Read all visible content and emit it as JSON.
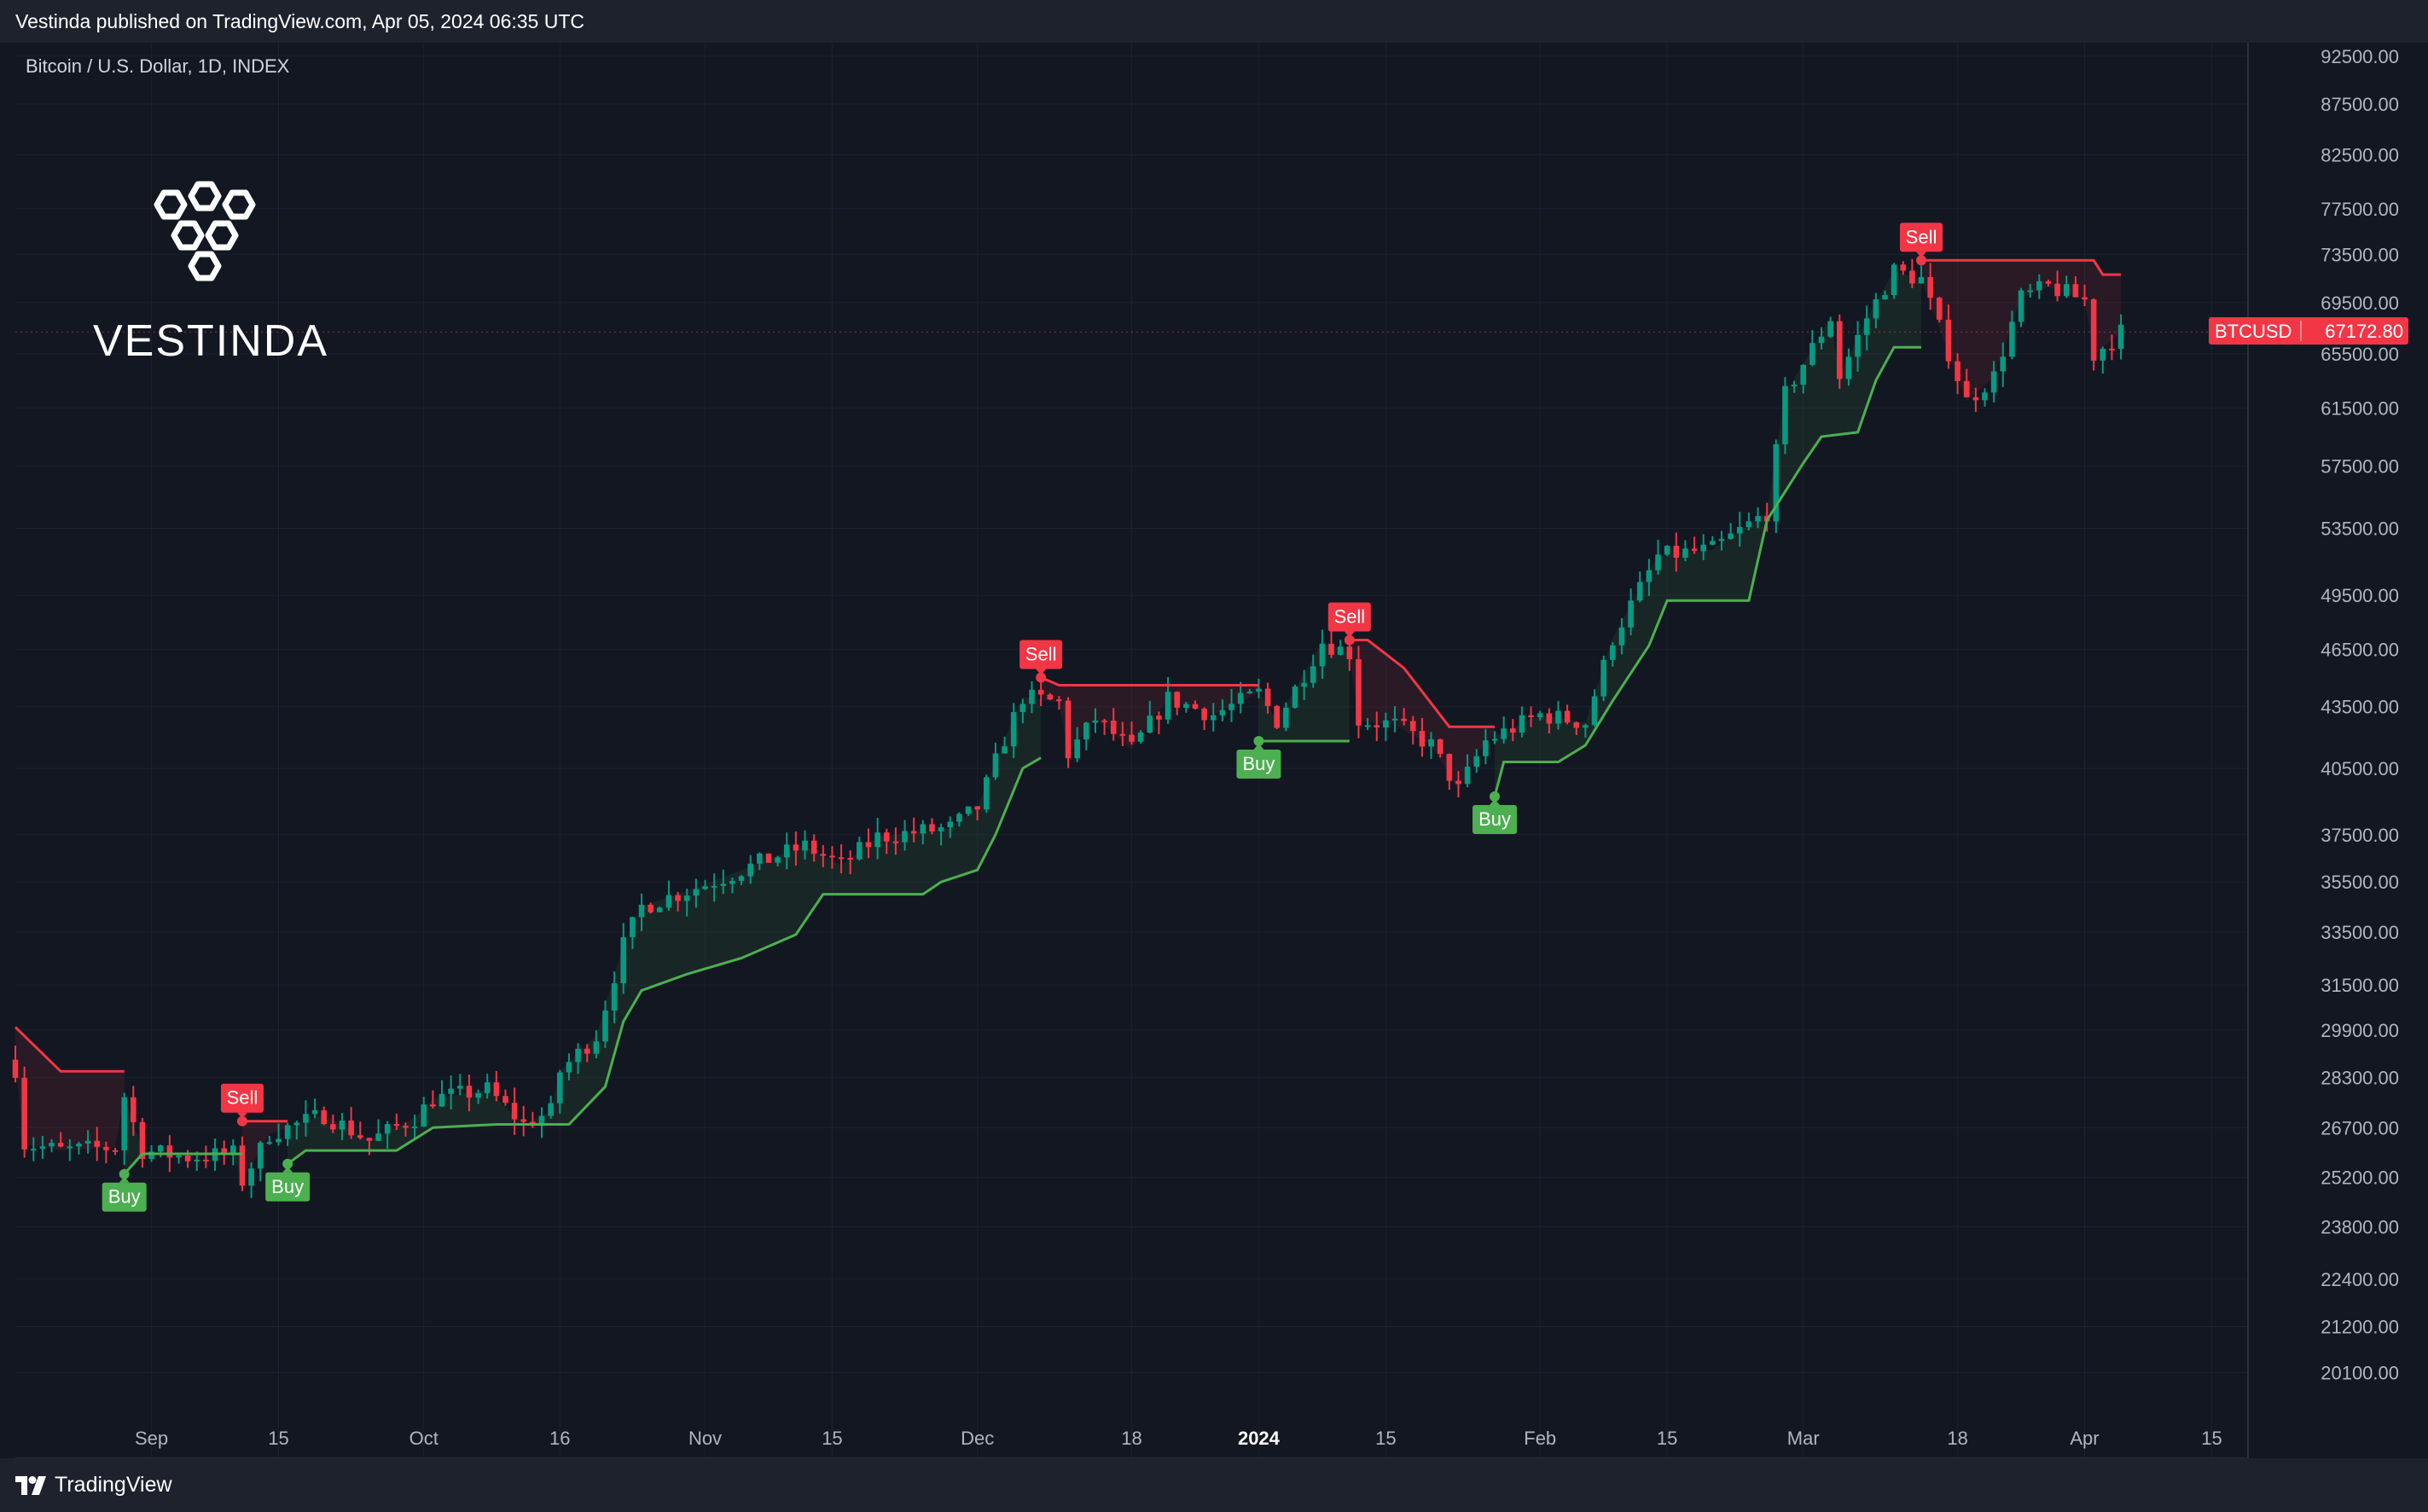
{
  "header": {
    "published": "Vestinda published on TradingView.com, Apr 05, 2024 06:35 UTC"
  },
  "chart_meta": {
    "symbol_line": "Bitcoin / U.S. Dollar, 1D, INDEX"
  },
  "brand": {
    "name": "VESTINDA",
    "logo_icon": "vestinda-hexagons-icon"
  },
  "footer": {
    "brand": "TradingView",
    "logo_icon": "tradingview-17-icon"
  },
  "price_tag": {
    "symbol": "BTCUSD",
    "price": "67172.80",
    "value": 67172.8,
    "color": "#f23645"
  },
  "colors": {
    "up": "#089981",
    "down": "#f23645",
    "up_line": "#4caf50",
    "down_line": "#f23645",
    "background": "#131722"
  },
  "chart_data": {
    "type": "candlestick",
    "title": "Bitcoin / U.S. Dollar, 1D, INDEX",
    "y_scale": "log",
    "ylim": [
      19500,
      93500
    ],
    "y_ticks": [
      "92500.00",
      "87500.00",
      "82500.00",
      "77500.00",
      "73500.00",
      "69500.00",
      "65500.00",
      "61500.00",
      "57500.00",
      "53500.00",
      "49500.00",
      "46500.00",
      "43500.00",
      "40500.00",
      "37500.00",
      "35500.00",
      "33500.00",
      "31500.00",
      "29900.00",
      "28300.00",
      "26700.00",
      "25200.00",
      "23800.00",
      "22400.00",
      "21200.00",
      "20100.00"
    ],
    "x_range": [
      "2023-08-17",
      "2024-04-19"
    ],
    "x_ticks": [
      {
        "date": "2023-09-01",
        "label": "Sep"
      },
      {
        "date": "2023-09-15",
        "label": "15"
      },
      {
        "date": "2023-10-01",
        "label": "Oct"
      },
      {
        "date": "2023-10-16",
        "label": "16"
      },
      {
        "date": "2023-11-01",
        "label": "Nov"
      },
      {
        "date": "2023-11-15",
        "label": "15"
      },
      {
        "date": "2023-12-01",
        "label": "Dec"
      },
      {
        "date": "2023-12-18",
        "label": "18"
      },
      {
        "date": "2024-01-01",
        "label": "2024",
        "bold": true
      },
      {
        "date": "2024-01-15",
        "label": "15"
      },
      {
        "date": "2024-02-01",
        "label": "Feb"
      },
      {
        "date": "2024-02-15",
        "label": "15"
      },
      {
        "date": "2024-03-01",
        "label": "Mar"
      },
      {
        "date": "2024-03-18",
        "label": "18"
      },
      {
        "date": "2024-04-01",
        "label": "Apr"
      },
      {
        "date": "2024-04-15",
        "label": "15"
      }
    ],
    "close_path": [
      [
        "2023-08-17",
        28600
      ],
      [
        "2023-08-18",
        26200
      ],
      [
        "2023-08-22",
        26000
      ],
      [
        "2023-08-28",
        26100
      ],
      [
        "2023-08-29",
        27700
      ],
      [
        "2023-08-31",
        26000
      ],
      [
        "2023-09-05",
        25800
      ],
      [
        "2023-09-10",
        25900
      ],
      [
        "2023-09-11",
        25100
      ],
      [
        "2023-09-14",
        26500
      ],
      [
        "2023-09-20",
        27100
      ],
      [
        "2023-09-25",
        26300
      ],
      [
        "2023-09-30",
        27000
      ],
      [
        "2023-10-02",
        27600
      ],
      [
        "2023-10-08",
        27900
      ],
      [
        "2023-10-12",
        26800
      ],
      [
        "2023-10-15",
        27200
      ],
      [
        "2023-10-16",
        28500
      ],
      [
        "2023-10-20",
        29700
      ],
      [
        "2023-10-23",
        33000
      ],
      [
        "2023-10-25",
        34500
      ],
      [
        "2023-11-01",
        35400
      ],
      [
        "2023-11-09",
        36600
      ],
      [
        "2023-11-12",
        37000
      ],
      [
        "2023-11-16",
        36200
      ],
      [
        "2023-11-20",
        37400
      ],
      [
        "2023-11-28",
        37800
      ],
      [
        "2023-12-01",
        38700
      ],
      [
        "2023-12-04",
        41900
      ],
      [
        "2023-12-06",
        44000
      ],
      [
        "2023-12-10",
        43700
      ],
      [
        "2023-12-11",
        41200
      ],
      [
        "2023-12-14",
        42900
      ],
      [
        "2023-12-18",
        41400
      ],
      [
        "2023-12-22",
        43900
      ],
      [
        "2023-12-27",
        43100
      ],
      [
        "2024-01-01",
        44200
      ],
      [
        "2024-01-03",
        42800
      ],
      [
        "2024-01-08",
        46900
      ],
      [
        "2024-01-11",
        46300
      ],
      [
        "2024-01-12",
        42800
      ],
      [
        "2024-01-16",
        42600
      ],
      [
        "2024-01-20",
        41600
      ],
      [
        "2024-01-23",
        39500
      ],
      [
        "2024-01-26",
        41800
      ],
      [
        "2024-02-01",
        43100
      ],
      [
        "2024-02-06",
        42700
      ],
      [
        "2024-02-09",
        47100
      ],
      [
        "2024-02-14",
        51800
      ],
      [
        "2024-02-20",
        52200
      ],
      [
        "2024-02-26",
        54500
      ],
      [
        "2024-02-28",
        62500
      ],
      [
        "2024-03-04",
        68300
      ],
      [
        "2024-03-05",
        63800
      ],
      [
        "2024-03-08",
        68300
      ],
      [
        "2024-03-11",
        72100
      ],
      [
        "2024-03-14",
        71400
      ],
      [
        "2024-03-15",
        69400
      ],
      [
        "2024-03-19",
        62000
      ],
      [
        "2024-03-22",
        63800
      ],
      [
        "2024-03-25",
        69900
      ],
      [
        "2024-03-28",
        70800
      ],
      [
        "2024-04-01",
        69700
      ],
      [
        "2024-04-02",
        65400
      ],
      [
        "2024-04-05",
        67172.8
      ]
    ],
    "supertrend": {
      "down": [
        {
          "from": "2023-08-17",
          "to": "2023-08-29",
          "path": [
            [
              "2023-08-17",
              30000
            ],
            [
              "2023-08-22",
              28500
            ],
            [
              "2023-08-29",
              28500
            ]
          ]
        },
        {
          "from": "2023-09-11",
          "to": "2023-09-16",
          "path": [
            [
              "2023-09-11",
              26900
            ],
            [
              "2023-09-16",
              26900
            ]
          ]
        },
        {
          "from": "2023-12-08",
          "to": "2024-01-01",
          "path": [
            [
              "2023-12-08",
              45000
            ],
            [
              "2023-12-10",
              44600
            ],
            [
              "2024-01-01",
              44600
            ]
          ]
        },
        {
          "from": "2024-01-11",
          "to": "2024-01-27",
          "path": [
            [
              "2024-01-11",
              47000
            ],
            [
              "2024-01-13",
              47000
            ],
            [
              "2024-01-17",
              45500
            ],
            [
              "2024-01-22",
              42500
            ],
            [
              "2024-01-27",
              42500
            ]
          ]
        },
        {
          "from": "2024-03-14",
          "to": "2024-04-05",
          "path": [
            [
              "2024-03-14",
              73000
            ],
            [
              "2024-04-02",
              73000
            ],
            [
              "2024-04-03",
              71800
            ],
            [
              "2024-04-05",
              71800
            ]
          ]
        }
      ],
      "up": [
        {
          "from": "2023-08-29",
          "to": "2023-09-11",
          "path": [
            [
              "2023-08-29",
              25300
            ],
            [
              "2023-08-31",
              25900
            ],
            [
              "2023-09-11",
              25900
            ]
          ]
        },
        {
          "from": "2023-09-16",
          "to": "2023-12-08",
          "path": [
            [
              "2023-09-16",
              25600
            ],
            [
              "2023-09-18",
              26000
            ],
            [
              "2023-09-28",
              26000
            ],
            [
              "2023-10-02",
              26700
            ],
            [
              "2023-10-09",
              26800
            ],
            [
              "2023-10-17",
              26800
            ],
            [
              "2023-10-21",
              28000
            ],
            [
              "2023-10-23",
              30200
            ],
            [
              "2023-10-25",
              31300
            ],
            [
              "2023-10-30",
              31900
            ],
            [
              "2023-11-05",
              32500
            ],
            [
              "2023-11-11",
              33400
            ],
            [
              "2023-11-14",
              35000
            ],
            [
              "2023-11-25",
              35000
            ],
            [
              "2023-11-27",
              35500
            ],
            [
              "2023-12-01",
              36000
            ],
            [
              "2023-12-03",
              37500
            ],
            [
              "2023-12-06",
              40500
            ],
            [
              "2023-12-08",
              41000
            ]
          ]
        },
        {
          "from": "2024-01-01",
          "to": "2024-01-11",
          "path": [
            [
              "2024-01-01",
              41800
            ],
            [
              "2024-01-11",
              41800
            ]
          ]
        },
        {
          "from": "2024-01-27",
          "to": "2024-03-14",
          "path": [
            [
              "2024-01-27",
              39200
            ],
            [
              "2024-01-28",
              40800
            ],
            [
              "2024-02-03",
              40800
            ],
            [
              "2024-02-06",
              41600
            ],
            [
              "2024-02-09",
              43800
            ],
            [
              "2024-02-13",
              46700
            ],
            [
              "2024-02-15",
              49200
            ],
            [
              "2024-02-24",
              49200
            ],
            [
              "2024-02-26",
              54000
            ],
            [
              "2024-03-01",
              57700
            ],
            [
              "2024-03-03",
              59500
            ],
            [
              "2024-03-07",
              59800
            ],
            [
              "2024-03-09",
              63500
            ],
            [
              "2024-03-11",
              66000
            ],
            [
              "2024-03-14",
              66000
            ]
          ]
        }
      ]
    },
    "signals": [
      {
        "type": "Buy",
        "date": "2023-08-29",
        "price": 25300
      },
      {
        "type": "Sell",
        "date": "2023-09-11",
        "price": 26900
      },
      {
        "type": "Buy",
        "date": "2023-09-16",
        "price": 25600
      },
      {
        "type": "Sell",
        "date": "2023-12-08",
        "price": 45000
      },
      {
        "type": "Buy",
        "date": "2024-01-01",
        "price": 41800
      },
      {
        "type": "Sell",
        "date": "2024-01-11",
        "price": 47000
      },
      {
        "type": "Buy",
        "date": "2024-01-27",
        "price": 39200
      },
      {
        "type": "Sell",
        "date": "2024-03-14",
        "price": 73000
      }
    ]
  }
}
